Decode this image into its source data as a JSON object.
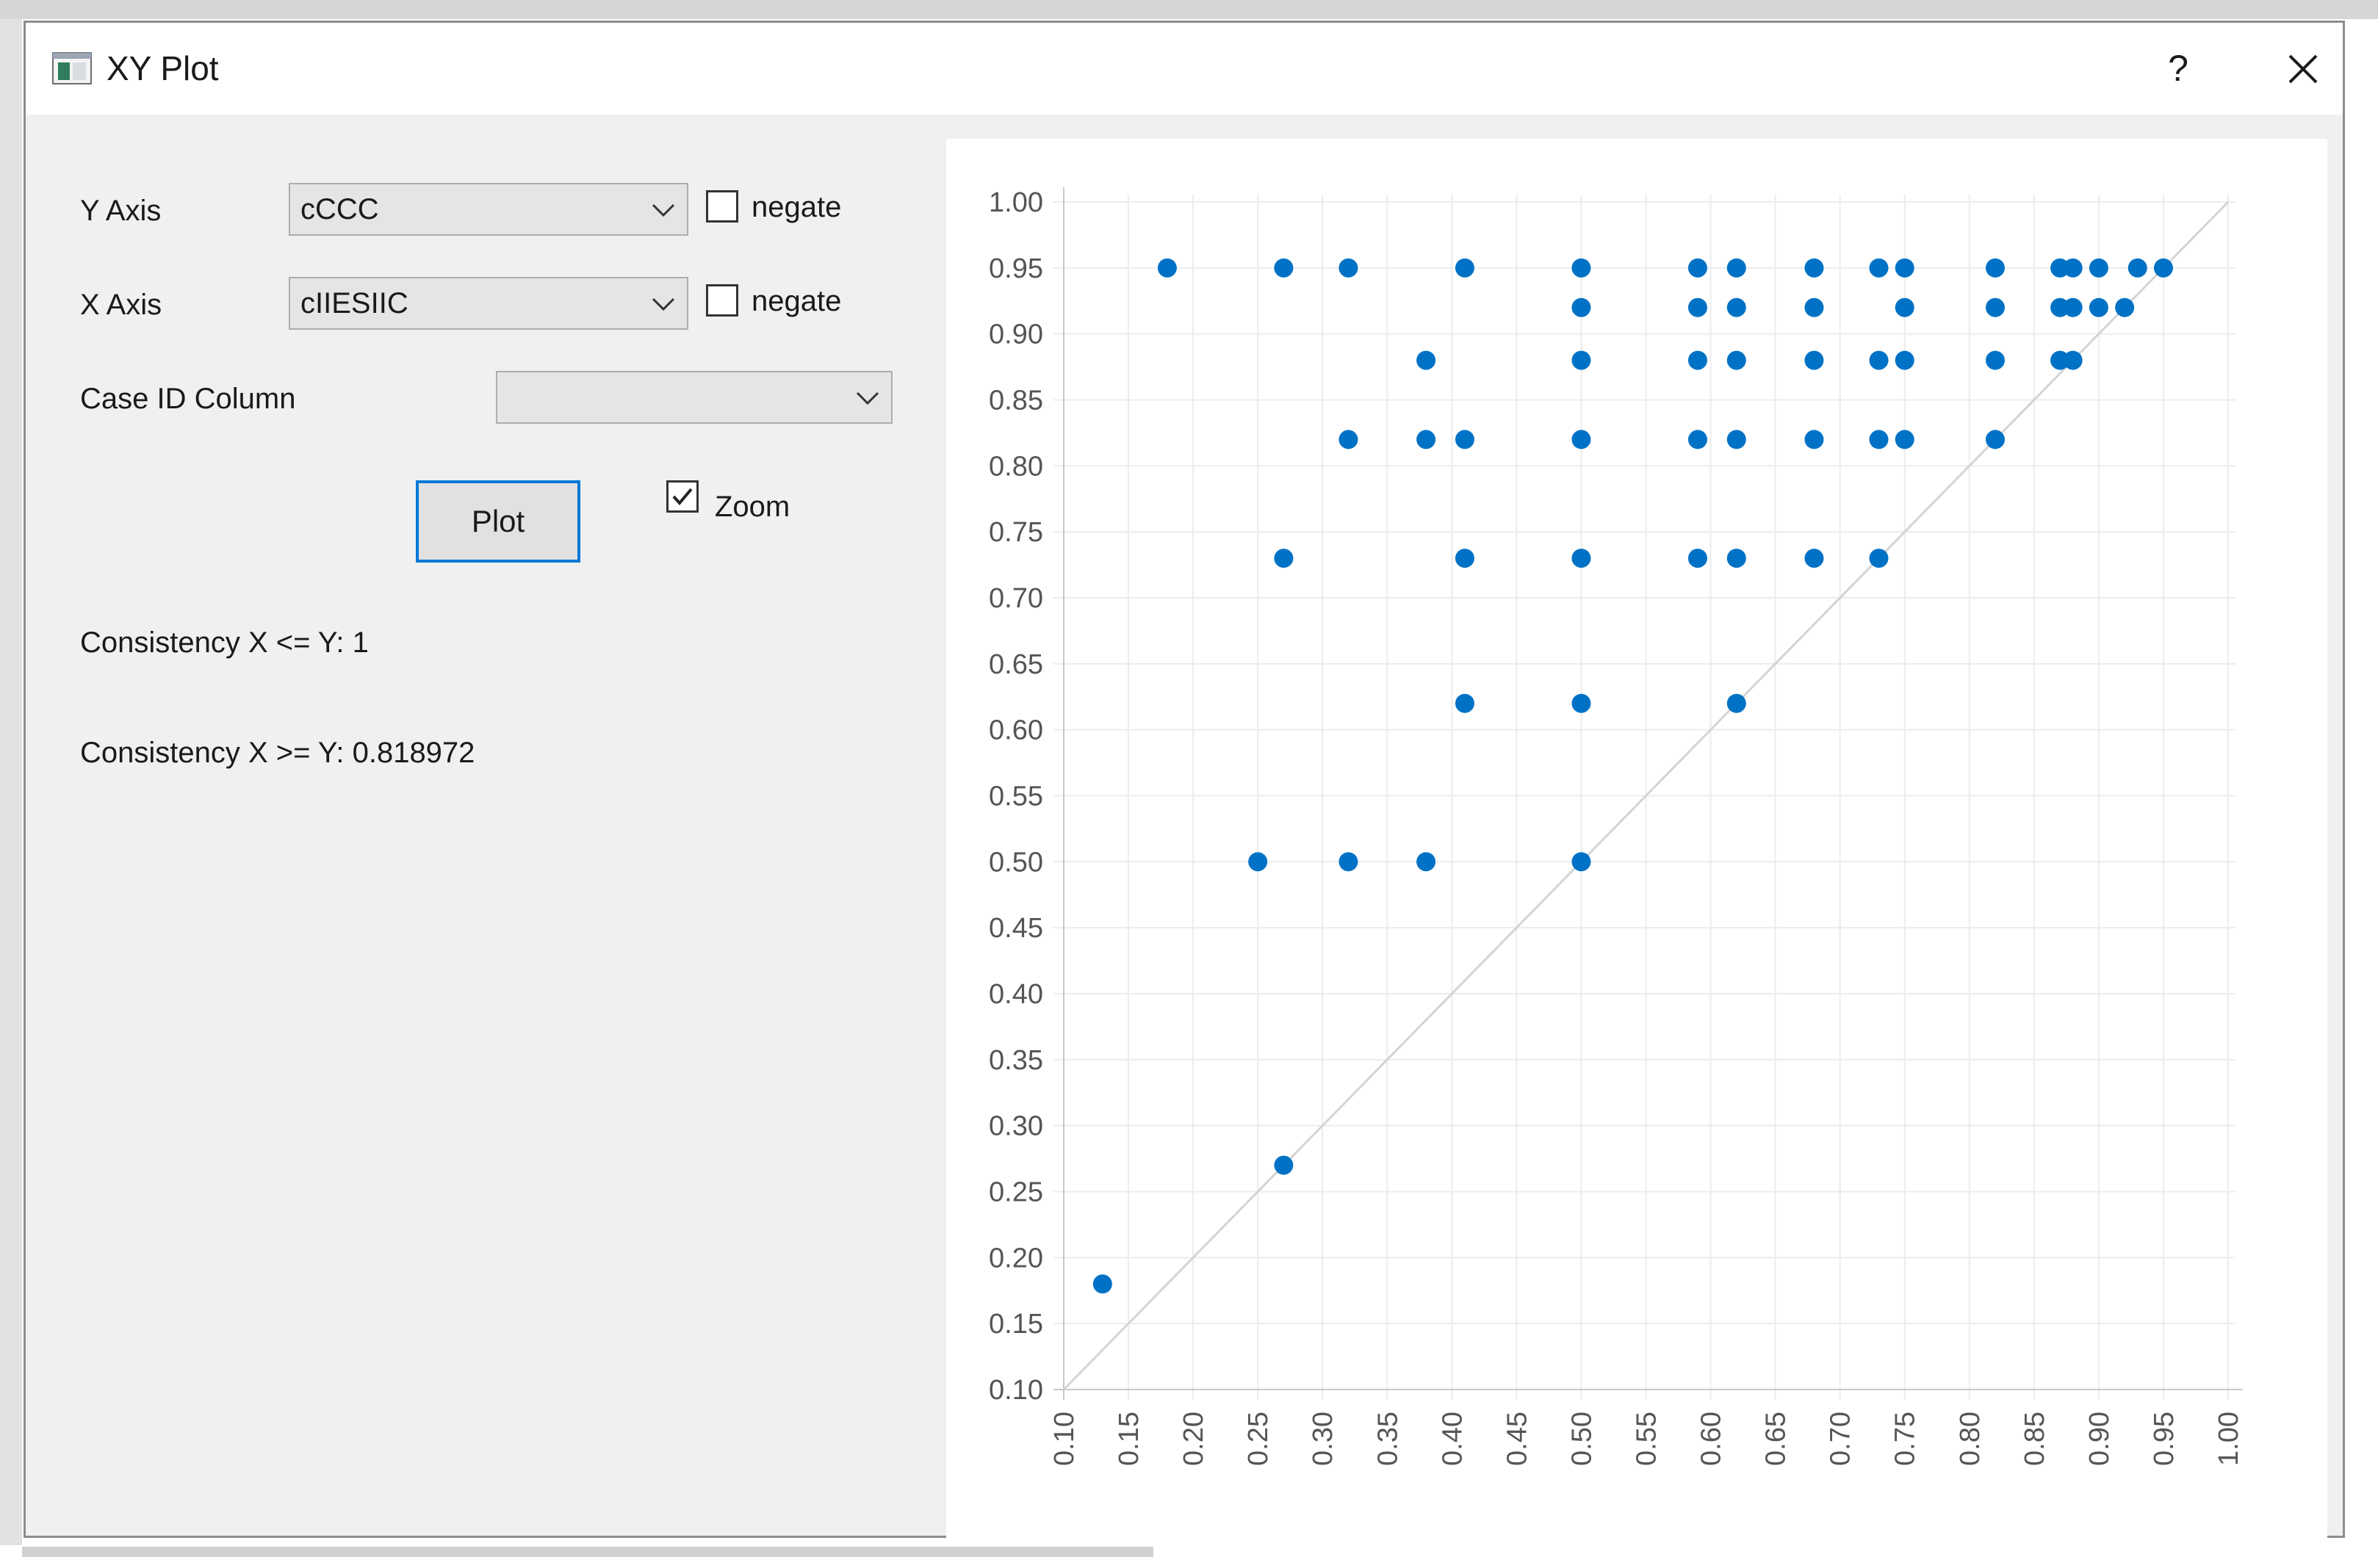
{
  "window": {
    "title": "XY Plot",
    "help_label": "?",
    "icons": {
      "app": "app-window-icon",
      "close": "close-icon"
    }
  },
  "form": {
    "y_axis": {
      "label": "Y Axis",
      "value": "cCCC",
      "negate_label": "negate",
      "negate_checked": false
    },
    "x_axis": {
      "label": "X Axis",
      "value": "cIIESIIC",
      "negate_label": "negate",
      "negate_checked": false
    },
    "case_id": {
      "label": "Case ID Column",
      "value": ""
    },
    "plot_button": "Plot",
    "zoom": {
      "label": "Zoom",
      "checked": true
    },
    "consistency_le": "Consistency X <= Y: 1",
    "consistency_ge": "Consistency X >= Y: 0.818972"
  },
  "colors": {
    "accent": "#0078d7",
    "point": "#0072c6",
    "diagonal": "#d4d4d4",
    "grid": "#ececec"
  },
  "chart_data": {
    "type": "scatter",
    "xlim": [
      0.1,
      1.0
    ],
    "ylim": [
      0.1,
      1.0
    ],
    "x_ticks": [
      "0.10",
      "0.15",
      "0.20",
      "0.25",
      "0.30",
      "0.35",
      "0.40",
      "0.45",
      "0.50",
      "0.55",
      "0.60",
      "0.65",
      "0.70",
      "0.75",
      "0.80",
      "0.85",
      "0.90",
      "0.95",
      "1.00"
    ],
    "y_ticks": [
      "0.10",
      "0.15",
      "0.20",
      "0.25",
      "0.30",
      "0.35",
      "0.40",
      "0.45",
      "0.50",
      "0.55",
      "0.60",
      "0.65",
      "0.70",
      "0.75",
      "0.80",
      "0.85",
      "0.90",
      "0.95",
      "1.00"
    ],
    "grid": true,
    "reference_line": "y = x",
    "points": [
      [
        0.13,
        0.18
      ],
      [
        0.18,
        0.95
      ],
      [
        0.25,
        0.5
      ],
      [
        0.27,
        0.27
      ],
      [
        0.27,
        0.73
      ],
      [
        0.27,
        0.95
      ],
      [
        0.32,
        0.5
      ],
      [
        0.32,
        0.82
      ],
      [
        0.32,
        0.95
      ],
      [
        0.38,
        0.5
      ],
      [
        0.38,
        0.82
      ],
      [
        0.38,
        0.88
      ],
      [
        0.41,
        0.62
      ],
      [
        0.41,
        0.73
      ],
      [
        0.41,
        0.82
      ],
      [
        0.41,
        0.95
      ],
      [
        0.5,
        0.5
      ],
      [
        0.5,
        0.62
      ],
      [
        0.5,
        0.73
      ],
      [
        0.5,
        0.82
      ],
      [
        0.5,
        0.88
      ],
      [
        0.5,
        0.92
      ],
      [
        0.5,
        0.95
      ],
      [
        0.59,
        0.73
      ],
      [
        0.59,
        0.82
      ],
      [
        0.59,
        0.88
      ],
      [
        0.59,
        0.92
      ],
      [
        0.59,
        0.95
      ],
      [
        0.62,
        0.62
      ],
      [
        0.62,
        0.73
      ],
      [
        0.62,
        0.82
      ],
      [
        0.62,
        0.88
      ],
      [
        0.62,
        0.92
      ],
      [
        0.62,
        0.95
      ],
      [
        0.68,
        0.73
      ],
      [
        0.68,
        0.82
      ],
      [
        0.68,
        0.88
      ],
      [
        0.68,
        0.92
      ],
      [
        0.68,
        0.95
      ],
      [
        0.73,
        0.73
      ],
      [
        0.73,
        0.82
      ],
      [
        0.73,
        0.88
      ],
      [
        0.73,
        0.95
      ],
      [
        0.75,
        0.82
      ],
      [
        0.75,
        0.88
      ],
      [
        0.75,
        0.92
      ],
      [
        0.75,
        0.95
      ],
      [
        0.82,
        0.82
      ],
      [
        0.82,
        0.88
      ],
      [
        0.82,
        0.92
      ],
      [
        0.82,
        0.95
      ],
      [
        0.87,
        0.88
      ],
      [
        0.87,
        0.92
      ],
      [
        0.87,
        0.95
      ],
      [
        0.88,
        0.88
      ],
      [
        0.88,
        0.92
      ],
      [
        0.88,
        0.95
      ],
      [
        0.9,
        0.92
      ],
      [
        0.9,
        0.95
      ],
      [
        0.92,
        0.92
      ],
      [
        0.93,
        0.95
      ],
      [
        0.95,
        0.95
      ]
    ]
  }
}
